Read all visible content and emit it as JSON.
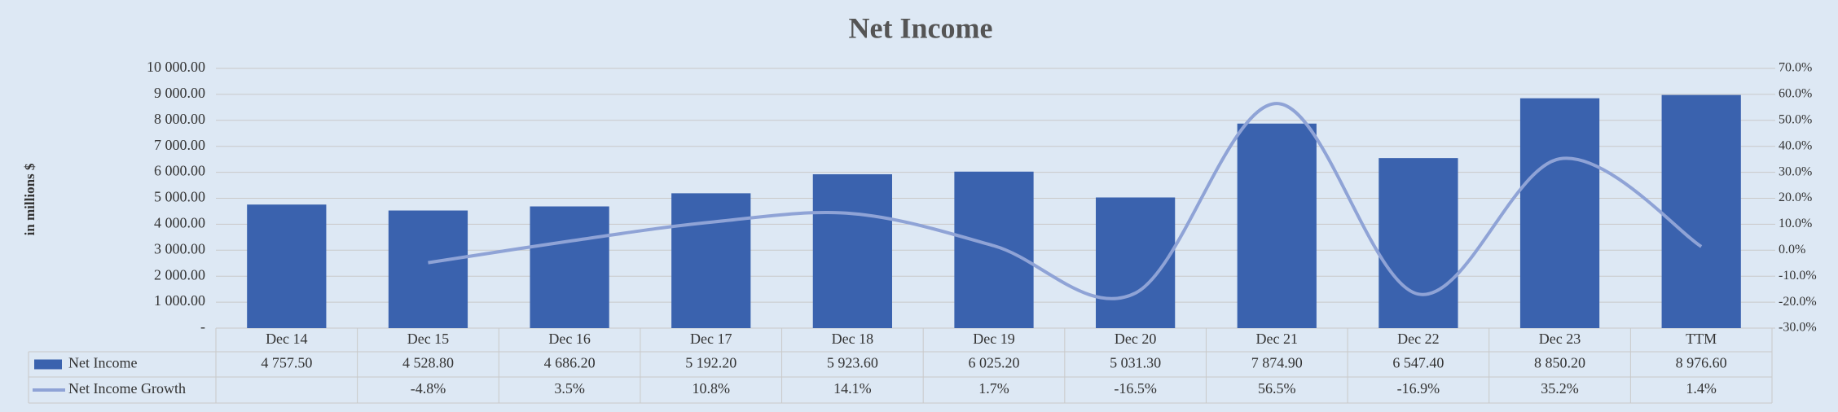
{
  "chart_data": {
    "type": "bar",
    "title": "Net Income",
    "y_label": "in millions $",
    "categories": [
      "Dec 14",
      "Dec 15",
      "Dec 16",
      "Dec 17",
      "Dec 18",
      "Dec 19",
      "Dec 20",
      "Dec 21",
      "Dec 22",
      "Dec 23",
      "TTM"
    ],
    "series": [
      {
        "name": "Net Income",
        "type": "bar",
        "color": "#3a62ae",
        "values": [
          4757.5,
          4528.8,
          4686.2,
          5192.2,
          5923.6,
          6025.2,
          5031.3,
          7874.9,
          6547.4,
          8850.2,
          8976.6
        ],
        "value_labels": [
          "4 757.50",
          "4 528.80",
          "4 686.20",
          "5 192.20",
          "5 923.60",
          "6 025.20",
          "5 031.30",
          "7 874.90",
          "6 547.40",
          "8 850.20",
          "8 976.60"
        ]
      },
      {
        "name": "Net Income Growth",
        "type": "line",
        "axis": "y2",
        "color": "#8fa3d6",
        "values": [
          null,
          -4.8,
          3.5,
          10.8,
          14.1,
          1.7,
          -16.5,
          56.5,
          -16.9,
          35.2,
          1.4
        ],
        "value_labels": [
          null,
          "-4.8%",
          "3.5%",
          "10.8%",
          "14.1%",
          "1.7%",
          "-16.5%",
          "56.5%",
          "-16.9%",
          "35.2%",
          "1.4%"
        ]
      }
    ],
    "ylim": [
      0,
      10000
    ],
    "yticks": [
      {
        "value": 0,
        "label": "-"
      },
      {
        "value": 1000,
        "label": "1 000.00"
      },
      {
        "value": 2000,
        "label": "2 000.00"
      },
      {
        "value": 3000,
        "label": "3 000.00"
      },
      {
        "value": 4000,
        "label": "4 000.00"
      },
      {
        "value": 5000,
        "label": "5 000.00"
      },
      {
        "value": 6000,
        "label": "6 000.00"
      },
      {
        "value": 7000,
        "label": "7 000.00"
      },
      {
        "value": 8000,
        "label": "8 000.00"
      },
      {
        "value": 9000,
        "label": "9 000.00"
      },
      {
        "value": 10000,
        "label": "10 000.00"
      }
    ],
    "y2lim": [
      -30,
      70
    ],
    "y2ticks": [
      {
        "value": -30,
        "label": "-30.0%"
      },
      {
        "value": -20,
        "label": "-20.0%"
      },
      {
        "value": -10,
        "label": "-10.0%"
      },
      {
        "value": 0,
        "label": "0.0%"
      },
      {
        "value": 10,
        "label": "10.0%"
      },
      {
        "value": 20,
        "label": "20.0%"
      },
      {
        "value": 30,
        "label": "30.0%"
      },
      {
        "value": 40,
        "label": "40.0%"
      },
      {
        "value": 50,
        "label": "50.0%"
      },
      {
        "value": 60,
        "label": "60.0%"
      },
      {
        "value": 70,
        "label": "70.0%"
      }
    ],
    "grid": true
  }
}
